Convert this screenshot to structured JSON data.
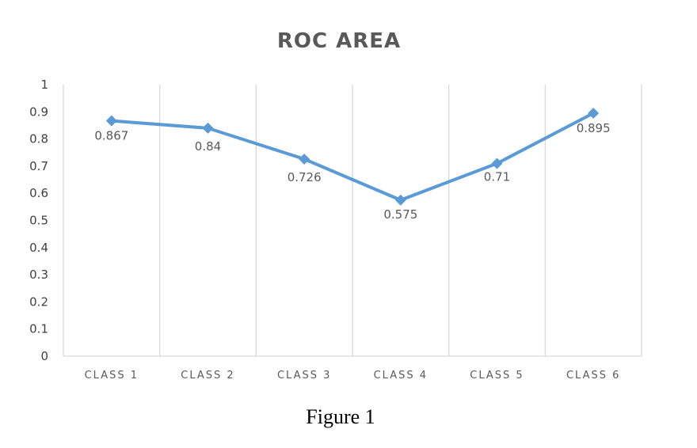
{
  "chart_data": {
    "type": "line",
    "title": "ROC AREA",
    "xlabel": "",
    "ylabel": "",
    "categories": [
      "CLASS 1",
      "CLASS 2",
      "CLASS 3",
      "CLASS 4",
      "CLASS 5",
      "CLASS 6"
    ],
    "series": [
      {
        "values": [
          0.867,
          0.84,
          0.726,
          0.575,
          0.71,
          0.895
        ],
        "color": "#5b9bd5",
        "marker": "diamond"
      }
    ],
    "data_labels": [
      "0.867",
      "0.84",
      "0.726",
      "0.575",
      "0.71",
      "0.895"
    ],
    "ylim": [
      0,
      1
    ],
    "y_ticks": [
      "0",
      "0.1",
      "0.2",
      "0.3",
      "0.4",
      "0.5",
      "0.6",
      "0.7",
      "0.8",
      "0.9",
      "1"
    ],
    "grid": "vertical category separators",
    "legend": "none"
  },
  "caption": "Figure 1"
}
